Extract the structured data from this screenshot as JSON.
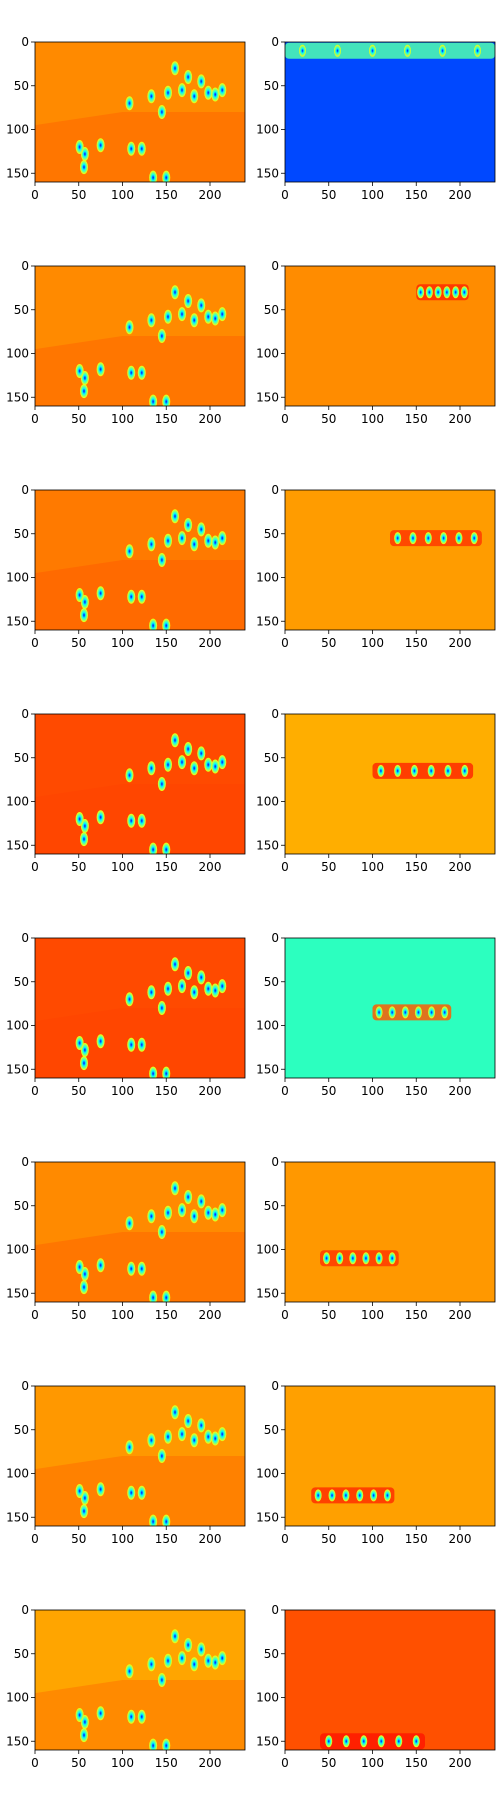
{
  "figure": {
    "rows": 8,
    "cols": 2,
    "colormap": [
      "#00007f",
      "#0000ff",
      "#007fff",
      "#00ffff",
      "#7fff7f",
      "#ffff00",
      "#ff7f00",
      "#ff0000",
      "#7f0000"
    ]
  },
  "chart_data": [
    {
      "type": "heatmap",
      "panel": "row-1-left",
      "xlim": [
        0,
        240
      ],
      "ylim": [
        160,
        0
      ],
      "xticks": [
        "0",
        "50",
        "100",
        "150",
        "200"
      ],
      "yticks": [
        "0",
        "50",
        "100",
        "150"
      ],
      "background": "#ff8a00",
      "band": null
    },
    {
      "type": "heatmap",
      "panel": "row-1-right",
      "xlim": [
        0,
        240
      ],
      "ylim": [
        160,
        0
      ],
      "xticks": [
        "0",
        "50",
        "100",
        "150",
        "200"
      ],
      "yticks": [
        "0",
        "50",
        "100",
        "150"
      ],
      "background": "#0048ff",
      "band": {
        "y": 10,
        "x_start": 0,
        "x_end": 240,
        "color": "#4fffb0"
      }
    },
    {
      "type": "heatmap",
      "panel": "row-2-left",
      "xlim": [
        0,
        240
      ],
      "ylim": [
        160,
        0
      ],
      "xticks": [
        "0",
        "50",
        "100",
        "150",
        "200"
      ],
      "yticks": [
        "0",
        "50",
        "100",
        "150"
      ],
      "background": "#ff8a00",
      "band": null
    },
    {
      "type": "heatmap",
      "panel": "row-2-right",
      "xlim": [
        0,
        240
      ],
      "ylim": [
        160,
        0
      ],
      "xticks": [
        "0",
        "50",
        "100",
        "150",
        "200"
      ],
      "yticks": [
        "0",
        "50",
        "100",
        "150"
      ],
      "background": "#ff8c00",
      "band": {
        "y": 30,
        "x_start": 150,
        "x_end": 210,
        "color": "#ff2a00"
      }
    },
    {
      "type": "heatmap",
      "panel": "row-3-left",
      "xlim": [
        0,
        240
      ],
      "ylim": [
        160,
        0
      ],
      "xticks": [
        "0",
        "50",
        "100",
        "150",
        "200"
      ],
      "yticks": [
        "0",
        "50",
        "100",
        "150"
      ],
      "background": "#ff7a00",
      "band": null
    },
    {
      "type": "heatmap",
      "panel": "row-3-right",
      "xlim": [
        0,
        240
      ],
      "ylim": [
        160,
        0
      ],
      "xticks": [
        "0",
        "50",
        "100",
        "150",
        "200"
      ],
      "yticks": [
        "0",
        "50",
        "100",
        "150"
      ],
      "background": "#ff9c00",
      "band": {
        "y": 55,
        "x_start": 120,
        "x_end": 225,
        "color": "#ff3a00"
      }
    },
    {
      "type": "heatmap",
      "panel": "row-4-left",
      "xlim": [
        0,
        240
      ],
      "ylim": [
        160,
        0
      ],
      "xticks": [
        "0",
        "50",
        "100",
        "150",
        "200"
      ],
      "yticks": [
        "0",
        "50",
        "100",
        "150"
      ],
      "background": "#ff4a00",
      "band": null
    },
    {
      "type": "heatmap",
      "panel": "row-4-right",
      "xlim": [
        0,
        240
      ],
      "ylim": [
        160,
        0
      ],
      "xticks": [
        "0",
        "50",
        "100",
        "150",
        "200"
      ],
      "yticks": [
        "0",
        "50",
        "100",
        "150"
      ],
      "background": "#ffae00",
      "band": {
        "y": 65,
        "x_start": 100,
        "x_end": 215,
        "color": "#ff2a00"
      }
    },
    {
      "type": "heatmap",
      "panel": "row-5-left",
      "xlim": [
        0,
        240
      ],
      "ylim": [
        160,
        0
      ],
      "xticks": [
        "0",
        "50",
        "100",
        "150",
        "200"
      ],
      "yticks": [
        "0",
        "50",
        "100",
        "150"
      ],
      "background": "#ff4a00",
      "band": null
    },
    {
      "type": "heatmap",
      "panel": "row-5-right",
      "xlim": [
        0,
        240
      ],
      "ylim": [
        160,
        0
      ],
      "xticks": [
        "0",
        "50",
        "100",
        "150",
        "200"
      ],
      "yticks": [
        "0",
        "50",
        "100",
        "150"
      ],
      "background": "#2cffbf",
      "band": {
        "y": 85,
        "x_start": 100,
        "x_end": 190,
        "color": "#ff5a00"
      }
    },
    {
      "type": "heatmap",
      "panel": "row-6-left",
      "xlim": [
        0,
        240
      ],
      "ylim": [
        160,
        0
      ],
      "xticks": [
        "0",
        "50",
        "100",
        "150",
        "200"
      ],
      "yticks": [
        "0",
        "50",
        "100",
        "150"
      ],
      "background": "#ff8a00",
      "band": null
    },
    {
      "type": "heatmap",
      "panel": "row-6-right",
      "xlim": [
        0,
        240
      ],
      "ylim": [
        160,
        0
      ],
      "xticks": [
        "0",
        "50",
        "100",
        "150",
        "200"
      ],
      "yticks": [
        "0",
        "50",
        "100",
        "150"
      ],
      "background": "#ff9800",
      "band": {
        "y": 110,
        "x_start": 40,
        "x_end": 130,
        "color": "#ff3a00"
      }
    },
    {
      "type": "heatmap",
      "panel": "row-7-left",
      "xlim": [
        0,
        240
      ],
      "ylim": [
        160,
        0
      ],
      "xticks": [
        "0",
        "50",
        "100",
        "150",
        "200"
      ],
      "yticks": [
        "0",
        "50",
        "100",
        "150"
      ],
      "background": "#ff9800",
      "band": null
    },
    {
      "type": "heatmap",
      "panel": "row-7-right",
      "xlim": [
        0,
        240
      ],
      "ylim": [
        160,
        0
      ],
      "xticks": [
        "0",
        "50",
        "100",
        "150",
        "200"
      ],
      "yticks": [
        "0",
        "50",
        "100",
        "150"
      ],
      "background": "#ffa000",
      "band": {
        "y": 125,
        "x_start": 30,
        "x_end": 125,
        "color": "#ff3000"
      }
    },
    {
      "type": "heatmap",
      "panel": "row-8-left",
      "xlim": [
        0,
        240
      ],
      "ylim": [
        160,
        0
      ],
      "xticks": [
        "0",
        "50",
        "100",
        "150",
        "200"
      ],
      "yticks": [
        "0",
        "50",
        "100",
        "150"
      ],
      "background": "#ffa500",
      "band": null
    },
    {
      "type": "heatmap",
      "panel": "row-8-right",
      "xlim": [
        0,
        240
      ],
      "ylim": [
        160,
        0
      ],
      "xticks": [
        "0",
        "50",
        "100",
        "150",
        "200"
      ],
      "yticks": [
        "0",
        "50",
        "100",
        "150"
      ],
      "background": "#ff5000",
      "band": {
        "y": 150,
        "x_start": 40,
        "x_end": 160,
        "color": "#ff1800"
      }
    }
  ],
  "blobs": [
    [
      57,
      128
    ],
    [
      75,
      118
    ],
    [
      51,
      120
    ],
    [
      56,
      143
    ],
    [
      108,
      70
    ],
    [
      122,
      122
    ],
    [
      110,
      122
    ],
    [
      133,
      62
    ],
    [
      152,
      58
    ],
    [
      160,
      30
    ],
    [
      168,
      55
    ],
    [
      175,
      40
    ],
    [
      182,
      62
    ],
    [
      190,
      45
    ],
    [
      198,
      58
    ],
    [
      206,
      60
    ],
    [
      214,
      55
    ],
    [
      145,
      80
    ],
    [
      135,
      155
    ],
    [
      150,
      155
    ]
  ]
}
